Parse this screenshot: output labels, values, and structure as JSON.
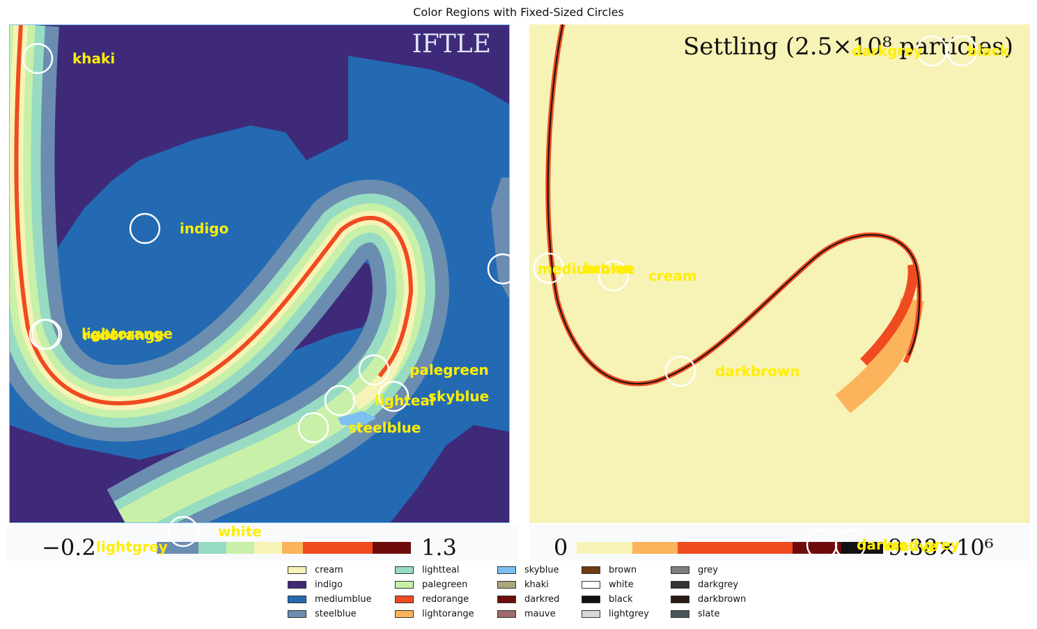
{
  "title": "Color Regions with Fixed-Sized Circles",
  "left_panel": {
    "heading": "IFTLE",
    "colorbar_min": "−0.2",
    "colorbar_max": "1.3"
  },
  "right_panel": {
    "heading": "Settling (2.5×10⁸ particles)",
    "colorbar_min": "0",
    "colorbar_max": "9.38×10⁶"
  },
  "region_labels": [
    "khaki",
    "indigo",
    "lightorange",
    "redorange",
    "palegreen",
    "skyblue",
    "lighteal",
    "steelblue",
    "white",
    "lightgrey",
    "mediumblue",
    "brown",
    "cream",
    "darkbrown",
    "darkgrey",
    "black",
    "darkred",
    "mauve",
    "grey"
  ],
  "legend": [
    {
      "name": "cream",
      "color": "#f7f3b6"
    },
    {
      "name": "indigo",
      "color": "#3f2a7a"
    },
    {
      "name": "mediumblue",
      "color": "#236ab3"
    },
    {
      "name": "steelblue",
      "color": "#6b8db0"
    },
    {
      "name": "lightteal",
      "color": "#97dbc3"
    },
    {
      "name": "palegreen",
      "color": "#c8f0a8"
    },
    {
      "name": "redorange",
      "color": "#f04a20"
    },
    {
      "name": "lightorange",
      "color": "#fbb45c"
    },
    {
      "name": "skyblue",
      "color": "#7cc0ef"
    },
    {
      "name": "khaki",
      "color": "#aaa87a"
    },
    {
      "name": "darkred",
      "color": "#6e0c0c"
    },
    {
      "name": "mauve",
      "color": "#a06a6a"
    },
    {
      "name": "brown",
      "color": "#6e3c12"
    },
    {
      "name": "white",
      "color": "#ffffff"
    },
    {
      "name": "black",
      "color": "#111111"
    },
    {
      "name": "lightgrey",
      "color": "#d5d8d8"
    },
    {
      "name": "grey",
      "color": "#808080"
    },
    {
      "name": "darkgrey",
      "color": "#333333"
    },
    {
      "name": "darkbrown",
      "color": "#2a1a14"
    },
    {
      "name": "slate",
      "color": "#47555a"
    }
  ],
  "colors": {
    "label_text": "#ffee00",
    "circle": "#ffffff"
  }
}
